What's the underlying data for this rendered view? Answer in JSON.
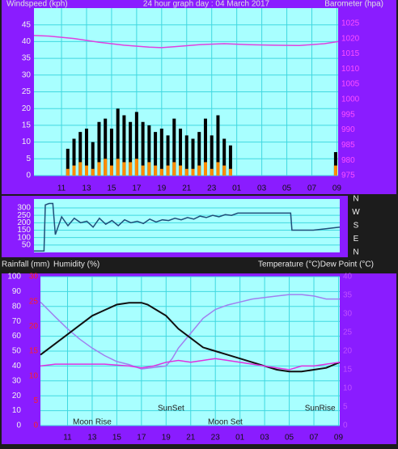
{
  "chart_data": [
    {
      "type": "line",
      "ylabel": "Windspeed (kph)",
      "title": "24 hour graph day : 04 March 2017",
      "y2label": "Barometer (hpa)",
      "xlim": [
        8.8,
        33.1
      ],
      "xticks": [
        11,
        13,
        15,
        17,
        19,
        21,
        23,
        {
          "value": 25,
          "label": "01"
        },
        {
          "value": 27,
          "label": "03"
        },
        {
          "value": 29,
          "label": "05"
        },
        {
          "value": 31,
          "label": "07"
        },
        {
          "value": 33,
          "label": "09"
        }
      ],
      "ylim": [
        0,
        50
      ],
      "yticks": [
        0,
        5,
        10,
        15,
        20,
        25,
        30,
        35,
        40,
        45
      ],
      "y2lim": [
        975,
        1030
      ],
      "y2ticks": [
        975,
        980,
        985,
        990,
        995,
        1000,
        1005,
        1010,
        1015,
        1020,
        1025
      ],
      "grid": true,
      "series": [
        {
          "color": "#000000",
          "mark": "bars",
          "x": [
            11.5,
            12,
            12.5,
            13,
            13.5,
            14,
            14.5,
            15,
            15.5,
            16,
            16.5,
            17,
            17.5,
            18,
            18.5,
            19,
            19.5,
            20,
            20.5,
            21,
            21.5,
            22,
            22.5,
            23,
            23.5,
            24,
            24.5,
            32.9
          ],
          "values": [
            8,
            11,
            13,
            14,
            10,
            16,
            17,
            14,
            20,
            18,
            16,
            19,
            16,
            15,
            13,
            14,
            12,
            17,
            14,
            12,
            11,
            13,
            17,
            12,
            18,
            11,
            9,
            7
          ]
        },
        {
          "color": "#ff8c00",
          "mark": "bars",
          "x": [
            11.5,
            12,
            12.5,
            13,
            13.5,
            14,
            14.5,
            15,
            15.5,
            16,
            16.5,
            17,
            17.5,
            18,
            18.5,
            19,
            19.5,
            20,
            20.5,
            21,
            21.5,
            22,
            22.5,
            23,
            23.5,
            24,
            24.5,
            32.9
          ],
          "values": [
            2,
            3,
            4,
            3,
            2,
            4,
            5,
            3,
            5,
            4,
            4,
            5,
            3,
            4,
            3,
            2,
            3,
            4,
            3,
            2,
            2,
            3,
            4,
            2,
            4,
            3,
            2,
            3
          ]
        },
        {
          "color": "#e040e0",
          "mark": "line",
          "axis": "y2",
          "x": [
            8.8,
            10,
            12,
            14,
            16,
            18,
            19,
            20,
            22,
            24,
            26,
            28,
            30,
            32,
            33.1
          ],
          "values": [
            1021,
            1020.8,
            1020,
            1018.8,
            1017.8,
            1017.2,
            1017,
            1017.3,
            1018,
            1018.3,
            1018,
            1017.8,
            1017.7,
            1018.3,
            1019
          ]
        }
      ]
    },
    {
      "type": "line",
      "xlim": [
        8.8,
        33.1
      ],
      "ylim": [
        0,
        360
      ],
      "yticks": [
        50,
        100,
        150,
        200,
        250,
        300
      ],
      "y2lim": [
        0,
        360
      ],
      "y2ticks": [
        {
          "value": 360,
          "label": "N"
        },
        {
          "value": 270,
          "label": "W"
        },
        {
          "value": 180,
          "label": "S"
        },
        {
          "value": 90,
          "label": "E"
        },
        {
          "value": 0,
          "label": "N"
        }
      ],
      "grid": true,
      "series": [
        {
          "color": "#1f4e79",
          "mark": "line",
          "x": [
            8.8,
            9.6,
            9.7,
            10,
            10.3,
            10.5,
            11,
            11.5,
            12,
            12.5,
            13,
            13.5,
            14,
            14.5,
            15,
            15.5,
            16,
            16.5,
            17,
            17.5,
            18,
            18.5,
            19,
            19.5,
            20,
            20.5,
            21,
            21.5,
            22,
            22.5,
            23,
            23.5,
            24,
            24.5,
            25,
            26,
            28,
            29.2,
            29.3,
            31,
            32,
            33.1
          ],
          "values": [
            10,
            10,
            320,
            330,
            330,
            120,
            240,
            180,
            230,
            200,
            210,
            170,
            230,
            190,
            215,
            180,
            220,
            200,
            210,
            195,
            225,
            205,
            220,
            215,
            230,
            220,
            235,
            225,
            245,
            235,
            250,
            240,
            255,
            250,
            265,
            265,
            265,
            265,
            150,
            150,
            160,
            170
          ]
        }
      ]
    },
    {
      "type": "line",
      "ylabel": "Rainfall (mm)",
      "ylabel2": "Humidity (%)",
      "y2label": "Temperature (°C)Dew Point (°C)",
      "xlim": [
        8.8,
        33.1
      ],
      "xticks": [
        11,
        13,
        15,
        17,
        19,
        21,
        23,
        {
          "value": 25,
          "label": "01"
        },
        {
          "value": 27,
          "label": "03"
        },
        {
          "value": 29,
          "label": "05"
        },
        {
          "value": 31,
          "label": "07"
        },
        {
          "value": 33,
          "label": "09"
        }
      ],
      "ylim": [
        0,
        100
      ],
      "yticks": [
        0,
        10,
        20,
        30,
        40,
        50,
        60,
        70,
        80,
        90,
        100
      ],
      "y3lim": [
        0,
        30
      ],
      "y3ticks": [
        0,
        5,
        10,
        15,
        20,
        25,
        30
      ],
      "y2lim": [
        0,
        40
      ],
      "y2ticks": [
        0,
        5,
        10,
        15,
        20,
        25,
        30,
        35,
        40
      ],
      "grid": true,
      "annotations": [
        {
          "text": "Moon Rise",
          "x": 13
        },
        {
          "text": "SunSet",
          "x": 19.4
        },
        {
          "text": "Moon Set",
          "x": 23.8
        },
        {
          "text": "SunRise",
          "x": 31.5
        }
      ],
      "series": [
        {
          "color": "#a080f0",
          "mark": "line",
          "x": [
            8.8,
            10,
            11,
            12,
            13,
            14,
            15,
            16,
            17,
            18,
            19,
            19.5,
            20,
            21,
            22,
            23,
            24,
            25,
            26,
            27,
            28,
            29,
            30,
            31,
            32,
            33.1
          ],
          "values": [
            83,
            73,
            65,
            58,
            52,
            47,
            43,
            41,
            38,
            39,
            40,
            45,
            52,
            62,
            72,
            78,
            81,
            83,
            85,
            86,
            87,
            88,
            88,
            87,
            85,
            85
          ]
        },
        {
          "color": "#101010",
          "mark": "line",
          "axis": "y2",
          "x": [
            8.8,
            10,
            11,
            12,
            13,
            14,
            15,
            16,
            17,
            17.5,
            18,
            19,
            20,
            21,
            22,
            23,
            24,
            25,
            26,
            27,
            28,
            29,
            30,
            31,
            32,
            33.1
          ],
          "values": [
            19,
            22,
            24.5,
            27,
            29.5,
            31,
            32.5,
            33,
            33,
            32.5,
            31.5,
            29.5,
            26,
            23.5,
            21,
            20,
            19,
            18,
            17,
            16,
            15,
            14.5,
            14.5,
            15,
            15.5,
            17
          ]
        },
        {
          "color": "#e030e0",
          "mark": "line",
          "axis": "y2",
          "x": [
            8.8,
            10,
            12,
            14,
            16,
            17,
            18,
            19,
            20,
            21,
            22,
            23,
            24,
            26,
            28,
            29,
            30,
            31,
            32,
            33.1
          ],
          "values": [
            16,
            16.5,
            16.5,
            16.5,
            16,
            15.5,
            16,
            17,
            17.5,
            17,
            17.5,
            18,
            17.5,
            16.5,
            15.5,
            15,
            16,
            16,
            16.5,
            17
          ]
        }
      ]
    }
  ]
}
